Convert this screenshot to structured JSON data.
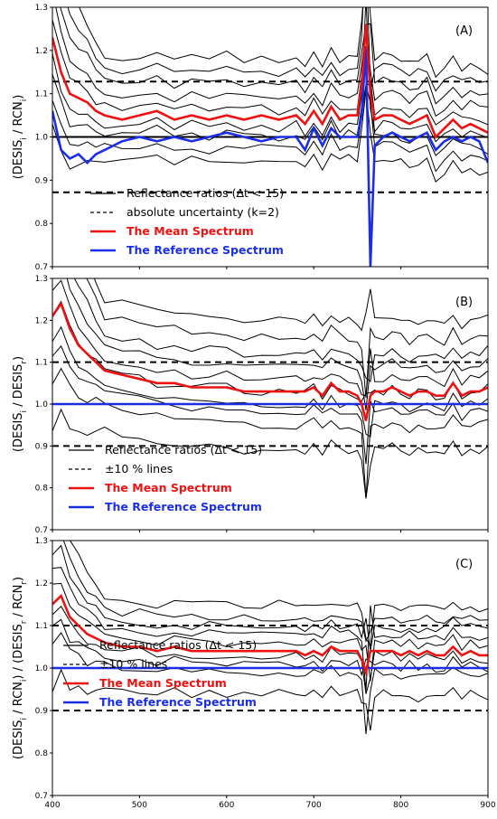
{
  "chart_data": [
    {
      "type": "line",
      "panel_label": "(A)",
      "ylabel_main": "(DESIS",
      "ylabel_parts": [
        [
          "(DESIS",
          ""
        ],
        [
          "i",
          "sub"
        ],
        [
          " / RCN",
          ""
        ],
        [
          "i",
          "sub"
        ],
        [
          ")",
          ""
        ]
      ],
      "xlim": [
        400,
        900
      ],
      "ylim": [
        0.7,
        1.3
      ],
      "x_ticks": [
        "400",
        "500",
        "600",
        "700",
        "800",
        "900"
      ],
      "y_ticks": [
        "0.7",
        "0.8",
        "0.9",
        "1.0",
        "1.1",
        "1.2",
        "1.3"
      ],
      "hlines": [
        {
          "y": 1.0,
          "style": "solid"
        },
        {
          "y": 1.128,
          "style": "dashed"
        },
        {
          "y": 0.872,
          "style": "dashed"
        }
      ],
      "series": [
        {
          "name": "The Mean Spectrum",
          "color": "#ee1111",
          "x": [
            400,
            410,
            420,
            430,
            440,
            450,
            460,
            480,
            500,
            520,
            540,
            560,
            580,
            600,
            620,
            640,
            660,
            680,
            690,
            700,
            710,
            720,
            730,
            740,
            750,
            755,
            760,
            765,
            770,
            780,
            790,
            800,
            810,
            820,
            830,
            840,
            850,
            860,
            870,
            880,
            890,
            900
          ],
          "y": [
            1.23,
            1.15,
            1.1,
            1.09,
            1.08,
            1.06,
            1.05,
            1.04,
            1.05,
            1.06,
            1.04,
            1.05,
            1.04,
            1.05,
            1.04,
            1.05,
            1.04,
            1.05,
            1.03,
            1.06,
            1.03,
            1.07,
            1.04,
            1.05,
            1.05,
            1.12,
            1.26,
            1.1,
            1.04,
            1.05,
            1.05,
            1.04,
            1.03,
            1.04,
            1.05,
            1.0,
            1.02,
            1.04,
            1.02,
            1.03,
            1.02,
            1.01
          ]
        },
        {
          "name": "The Reference Spectrum",
          "color": "#1a2ee8",
          "x": [
            400,
            410,
            420,
            430,
            440,
            450,
            460,
            480,
            500,
            520,
            540,
            560,
            580,
            600,
            620,
            640,
            660,
            680,
            690,
            700,
            710,
            720,
            730,
            740,
            750,
            755,
            760,
            765,
            770,
            780,
            790,
            800,
            810,
            820,
            830,
            840,
            850,
            860,
            870,
            880,
            890,
            900
          ],
          "y": [
            1.06,
            0.97,
            0.95,
            0.96,
            0.94,
            0.96,
            0.97,
            0.99,
            1.0,
            0.99,
            1.0,
            0.99,
            1.0,
            1.01,
            1.0,
            0.99,
            1.0,
            1.0,
            0.97,
            1.02,
            0.98,
            1.02,
            1.0,
            1.0,
            1.0,
            1.05,
            1.21,
            0.7,
            0.98,
            1.0,
            1.01,
            1.0,
            0.99,
            1.0,
            1.01,
            0.97,
            0.99,
            1.0,
            0.99,
            1.0,
            0.99,
            0.94
          ]
        }
      ],
      "legend": [
        {
          "label": "Reflectance ratios (Δt < 15)",
          "style": "solid",
          "color": "#000000"
        },
        {
          "label": "absolute uncertainty (k=2)",
          "style": "dashed",
          "color": "#000000"
        },
        {
          "label": "The Mean Spectrum",
          "style": "solid",
          "color": "#ee1111"
        },
        {
          "label": "The Reference Spectrum",
          "style": "solid",
          "color": "#1a2ee8"
        }
      ]
    },
    {
      "type": "line",
      "panel_label": "(B)",
      "ylabel_parts": [
        [
          "(DESIS",
          ""
        ],
        [
          "i",
          "sub"
        ],
        [
          " / DESIS",
          ""
        ],
        [
          "r",
          "sub"
        ],
        [
          ")",
          ""
        ]
      ],
      "xlim": [
        400,
        900
      ],
      "ylim": [
        0.7,
        1.3
      ],
      "x_ticks": [
        "400",
        "500",
        "600",
        "700",
        "800",
        "900"
      ],
      "y_ticks": [
        "0.7",
        "0.8",
        "0.9",
        "1.0",
        "1.1",
        "1.2",
        "1.3"
      ],
      "hlines": [
        {
          "y": 1.1,
          "style": "dashed"
        },
        {
          "y": 0.9,
          "style": "dashed"
        }
      ],
      "series": [
        {
          "name": "The Mean Spectrum",
          "color": "#ee1111",
          "x": [
            400,
            410,
            420,
            430,
            440,
            450,
            460,
            480,
            500,
            520,
            540,
            560,
            580,
            600,
            620,
            640,
            660,
            680,
            690,
            700,
            710,
            720,
            730,
            740,
            750,
            755,
            760,
            765,
            770,
            780,
            790,
            800,
            810,
            820,
            830,
            840,
            850,
            860,
            870,
            880,
            890,
            900
          ],
          "y": [
            1.21,
            1.24,
            1.18,
            1.14,
            1.12,
            1.1,
            1.08,
            1.07,
            1.06,
            1.05,
            1.05,
            1.04,
            1.04,
            1.04,
            1.03,
            1.03,
            1.03,
            1.03,
            1.03,
            1.04,
            1.02,
            1.05,
            1.03,
            1.03,
            1.02,
            1.0,
            0.96,
            1.02,
            1.03,
            1.03,
            1.04,
            1.03,
            1.02,
            1.03,
            1.03,
            1.02,
            1.02,
            1.05,
            1.02,
            1.03,
            1.03,
            1.04
          ]
        },
        {
          "name": "The Reference Spectrum",
          "color": "#1a2ee8",
          "x": [
            400,
            900
          ],
          "y": [
            1.0,
            1.0
          ]
        }
      ],
      "legend": [
        {
          "label": "Reflectance ratios (Δt < 15)",
          "style": "solid",
          "color": "#000000"
        },
        {
          "label": "±10 % lines",
          "style": "dashed",
          "color": "#000000"
        },
        {
          "label": "The Mean Spectrum",
          "style": "solid",
          "color": "#ee1111"
        },
        {
          "label": "The Reference Spectrum",
          "style": "solid",
          "color": "#1a2ee8"
        }
      ]
    },
    {
      "type": "line",
      "panel_label": "(C)",
      "ylabel_parts": [
        [
          "(DESIS",
          ""
        ],
        [
          "i",
          "sub"
        ],
        [
          " / RCN",
          ""
        ],
        [
          "i",
          "sub"
        ],
        [
          ") / (DESIS",
          ""
        ],
        [
          "r",
          "sub"
        ],
        [
          " / RCN",
          ""
        ],
        [
          "r",
          "sub"
        ],
        [
          ")",
          ""
        ]
      ],
      "xlim": [
        400,
        900
      ],
      "ylim": [
        0.7,
        1.3
      ],
      "x_ticks": [
        "400",
        "500",
        "600",
        "700",
        "800",
        "900"
      ],
      "y_ticks": [
        "0.7",
        "0.8",
        "0.9",
        "1.0",
        "1.1",
        "1.2",
        "1.3"
      ],
      "hlines": [
        {
          "y": 1.1,
          "style": "dashed"
        },
        {
          "y": 0.9,
          "style": "dashed"
        }
      ],
      "series": [
        {
          "name": "The Mean Spectrum",
          "color": "#ee1111",
          "x": [
            400,
            410,
            420,
            430,
            440,
            450,
            460,
            480,
            500,
            520,
            540,
            560,
            580,
            600,
            620,
            640,
            660,
            680,
            690,
            700,
            710,
            720,
            730,
            740,
            750,
            755,
            760,
            765,
            770,
            780,
            790,
            800,
            810,
            820,
            830,
            840,
            850,
            860,
            870,
            880,
            890,
            900
          ],
          "y": [
            1.15,
            1.17,
            1.12,
            1.1,
            1.08,
            1.07,
            1.06,
            1.05,
            1.05,
            1.04,
            1.05,
            1.04,
            1.04,
            1.04,
            1.04,
            1.04,
            1.04,
            1.04,
            1.03,
            1.04,
            1.03,
            1.05,
            1.04,
            1.04,
            1.04,
            1.02,
            0.99,
            1.04,
            1.04,
            1.04,
            1.04,
            1.03,
            1.04,
            1.03,
            1.04,
            1.03,
            1.03,
            1.05,
            1.03,
            1.04,
            1.03,
            1.03
          ]
        },
        {
          "name": "The Reference Spectrum",
          "color": "#1a2ee8",
          "x": [
            400,
            900
          ],
          "y": [
            1.0,
            1.0
          ]
        }
      ],
      "legend": [
        {
          "label": "Reflectance ratios (Δt < 15)",
          "style": "solid",
          "color": "#000000"
        },
        {
          "label": "±10 % lines",
          "style": "dashed",
          "color": "#000000"
        },
        {
          "label": "The Mean Spectrum",
          "style": "solid",
          "color": "#ee1111"
        },
        {
          "label": "The Reference Spectrum",
          "style": "solid",
          "color": "#1a2ee8"
        }
      ]
    }
  ]
}
